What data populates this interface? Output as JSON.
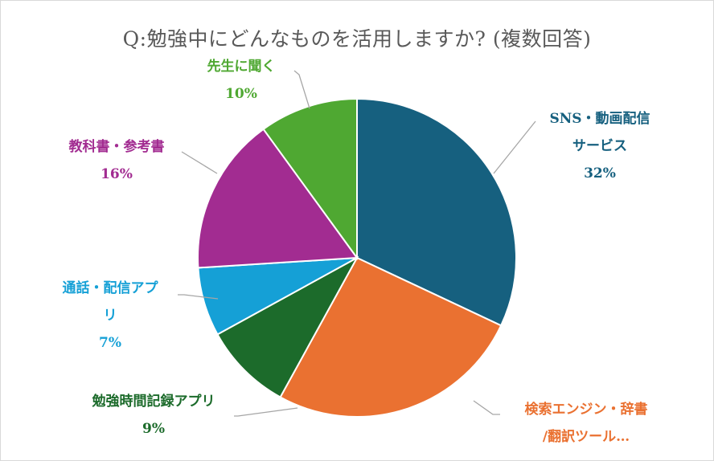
{
  "chart_data": {
    "type": "pie",
    "title": "Q:勉強中にどんなものを活用しますか? (複数回答)",
    "slices": [
      {
        "label_lines": [
          "SNS・動画配信",
          "サービス"
        ],
        "percent_label": "32%",
        "value": 32,
        "color": "#16607F"
      },
      {
        "label_lines": [
          "検索エンジン・辞書",
          "/翻訳ツール…"
        ],
        "percent_label": "",
        "value": 26,
        "color": "#EA7131"
      },
      {
        "label_lines": [
          "勉強時間記録アプリ"
        ],
        "percent_label": "9%",
        "value": 9,
        "color": "#1C6B2B"
      },
      {
        "label_lines": [
          "通話・配信アプ",
          "リ"
        ],
        "percent_label": "7%",
        "value": 7,
        "color": "#15A0D6"
      },
      {
        "label_lines": [
          "教科書・参考書"
        ],
        "percent_label": "16%",
        "value": 16,
        "color": "#A22C91"
      },
      {
        "label_lines": [
          "先生に聞く"
        ],
        "percent_label": "10%",
        "value": 10,
        "color": "#4FA832"
      }
    ]
  }
}
